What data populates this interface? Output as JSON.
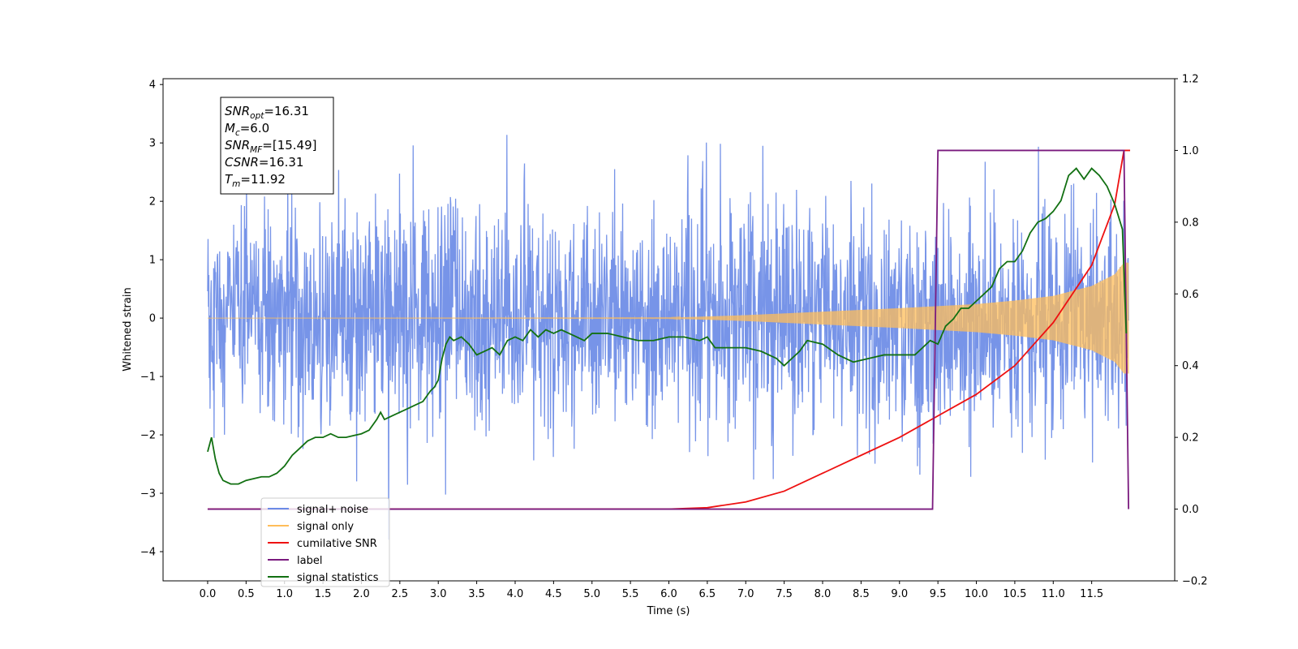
{
  "chart_data": {
    "type": "line",
    "xlabel": "Time (s)",
    "ylabel": "Whitened strain",
    "xlim": [
      -0.58,
      12.58
    ],
    "ylim": [
      -4.5,
      4.1
    ],
    "ylim_right": [
      -0.2,
      1.2
    ],
    "x_ticks": [
      0.0,
      0.5,
      1.0,
      1.5,
      2.0,
      2.5,
      3.0,
      3.5,
      4.0,
      4.5,
      5.0,
      5.5,
      6.0,
      6.5,
      7.0,
      7.5,
      8.0,
      8.5,
      9.0,
      9.5,
      10.0,
      10.5,
      11.0,
      11.5
    ],
    "x_tick_labels": [
      "0.0",
      "0.5",
      "1.0",
      "1.5",
      "2.0",
      "2.5",
      "3.0",
      "3.5",
      "4.0",
      "4.5",
      "5.0",
      "5.5",
      "6.0",
      "6.5",
      "7.0",
      "7.5",
      "8.0",
      "8.5",
      "9.0",
      "9.5",
      "10.0",
      "10.5",
      "11.0",
      "11.5"
    ],
    "y_ticks": [
      4,
      3,
      2,
      1,
      0,
      -1,
      -2,
      -3,
      -4
    ],
    "y_tick_labels": [
      "4",
      "3",
      "2",
      "1",
      "0",
      "−1",
      "−2",
      "−3",
      "−4"
    ],
    "y_right_ticks": [
      1.2,
      1.0,
      0.8,
      0.6,
      0.4,
      0.2,
      0.0,
      -0.2
    ],
    "y_right_tick_labels": [
      "1.2",
      "1.0",
      "0.8",
      "0.6",
      "0.4",
      "0.2",
      "0.0",
      "−0.2"
    ],
    "grid": false,
    "legend_position": "lower-left",
    "annotation": {
      "lines": [
        {
          "sym": "SNR",
          "sub": "opt",
          "value": "=16.31"
        },
        {
          "sym": "M",
          "sub": "c",
          "value": "=6.0"
        },
        {
          "sym": "SNR",
          "sub": "MF",
          "value": "=[15.49]"
        },
        {
          "sym": "CSNR",
          "sub": "",
          "value": "=16.31"
        },
        {
          "sym": "T",
          "sub": "m",
          "value": "=11.92"
        }
      ]
    },
    "series": [
      {
        "name": "signal+ noise",
        "color": "#6b8be6",
        "axis": "left",
        "kind": "noise",
        "x_range": [
          0.0,
          11.98
        ],
        "sigma": 1.0,
        "envelope_peak": 1.0,
        "observed_max": 3.72,
        "observed_min": -4.1
      },
      {
        "name": "signal only",
        "color": "#ffbd5a",
        "axis": "left",
        "kind": "chirp",
        "x_range": [
          0.0,
          11.98
        ],
        "envelope_x": [
          0.0,
          6.0,
          7.0,
          8.0,
          9.0,
          10.0,
          10.5,
          11.0,
          11.5,
          11.8,
          11.92
        ],
        "envelope_y": [
          0.0,
          0.005,
          0.05,
          0.11,
          0.17,
          0.24,
          0.3,
          0.38,
          0.55,
          0.75,
          0.95
        ]
      },
      {
        "name": "cumilative SNR",
        "color": "#ee1111",
        "axis": "right",
        "x": [
          0.0,
          6.0,
          6.5,
          7.0,
          7.5,
          8.0,
          8.5,
          9.0,
          9.5,
          10.0,
          10.5,
          11.0,
          11.5,
          11.8,
          11.92,
          12.0
        ],
        "y": [
          0.0,
          0.0,
          0.004,
          0.02,
          0.05,
          0.1,
          0.15,
          0.2,
          0.26,
          0.32,
          0.4,
          0.52,
          0.68,
          0.85,
          1.0,
          1.0
        ]
      },
      {
        "name": "label",
        "color": "#7a1a7e",
        "axis": "right",
        "x": [
          0.0,
          9.43,
          9.5,
          11.92,
          11.98
        ],
        "y": [
          0.0,
          0.0,
          1.0,
          1.0,
          0.0
        ]
      },
      {
        "name": "signal statistics",
        "color": "#127012",
        "axis": "right",
        "x": [
          0.0,
          0.05,
          0.1,
          0.15,
          0.2,
          0.3,
          0.4,
          0.5,
          0.6,
          0.7,
          0.8,
          0.9,
          1.0,
          1.1,
          1.2,
          1.3,
          1.4,
          1.5,
          1.6,
          1.7,
          1.8,
          1.9,
          2.0,
          2.1,
          2.2,
          2.25,
          2.3,
          2.4,
          2.5,
          2.6,
          2.7,
          2.8,
          2.9,
          2.95,
          3.0,
          3.05,
          3.1,
          3.15,
          3.2,
          3.3,
          3.4,
          3.5,
          3.6,
          3.7,
          3.8,
          3.9,
          4.0,
          4.1,
          4.2,
          4.3,
          4.4,
          4.5,
          4.6,
          4.7,
          4.8,
          4.9,
          5.0,
          5.2,
          5.4,
          5.6,
          5.8,
          6.0,
          6.2,
          6.4,
          6.5,
          6.6,
          6.8,
          7.0,
          7.2,
          7.4,
          7.5,
          7.6,
          7.7,
          7.8,
          8.0,
          8.2,
          8.4,
          8.6,
          8.8,
          9.0,
          9.2,
          9.3,
          9.4,
          9.5,
          9.6,
          9.7,
          9.8,
          9.9,
          10.0,
          10.1,
          10.2,
          10.3,
          10.4,
          10.5,
          10.6,
          10.7,
          10.8,
          10.9,
          11.0,
          11.1,
          11.2,
          11.3,
          11.4,
          11.5,
          11.6,
          11.7,
          11.8,
          11.9,
          11.95
        ],
        "y": [
          0.16,
          0.2,
          0.14,
          0.1,
          0.08,
          0.07,
          0.07,
          0.08,
          0.085,
          0.09,
          0.09,
          0.1,
          0.12,
          0.15,
          0.17,
          0.19,
          0.2,
          0.2,
          0.21,
          0.2,
          0.2,
          0.205,
          0.21,
          0.22,
          0.25,
          0.27,
          0.25,
          0.26,
          0.27,
          0.28,
          0.29,
          0.3,
          0.33,
          0.34,
          0.36,
          0.42,
          0.46,
          0.48,
          0.47,
          0.48,
          0.46,
          0.43,
          0.44,
          0.45,
          0.43,
          0.47,
          0.48,
          0.47,
          0.5,
          0.48,
          0.5,
          0.49,
          0.5,
          0.49,
          0.48,
          0.47,
          0.49,
          0.49,
          0.48,
          0.47,
          0.47,
          0.48,
          0.48,
          0.47,
          0.48,
          0.45,
          0.45,
          0.45,
          0.44,
          0.42,
          0.4,
          0.42,
          0.44,
          0.47,
          0.46,
          0.43,
          0.41,
          0.42,
          0.43,
          0.43,
          0.43,
          0.45,
          0.47,
          0.46,
          0.51,
          0.53,
          0.56,
          0.56,
          0.58,
          0.6,
          0.62,
          0.67,
          0.69,
          0.69,
          0.72,
          0.77,
          0.8,
          0.81,
          0.83,
          0.86,
          0.93,
          0.95,
          0.92,
          0.95,
          0.93,
          0.9,
          0.85,
          0.78,
          0.49
        ]
      }
    ]
  }
}
